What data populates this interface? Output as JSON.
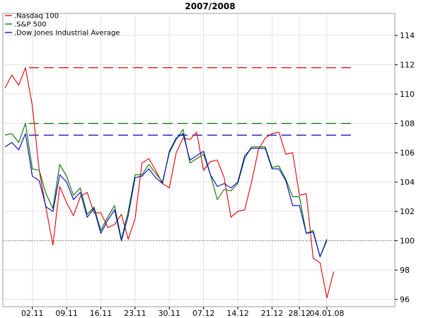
{
  "chart_data": {
    "type": "line",
    "title": "2007/2008",
    "xlabel": "",
    "ylabel": "",
    "ylim": [
      95.5,
      115.5
    ],
    "yticks": [
      96,
      98,
      100,
      102,
      104,
      106,
      108,
      110,
      112,
      114
    ],
    "x_dates": [
      "29.10",
      "30.10",
      "31.10",
      "01.11",
      "02.11",
      "05.11",
      "06.11",
      "07.11",
      "08.11",
      "09.11",
      "12.11",
      "13.11",
      "14.11",
      "15.11",
      "16.11",
      "19.11",
      "20.11",
      "21.11",
      "22.11",
      "23.11",
      "26.11",
      "27.11",
      "28.11",
      "29.11",
      "30.11",
      "03.12",
      "04.12",
      "05.12",
      "06.12",
      "07.12",
      "10.12",
      "11.12",
      "12.12",
      "13.12",
      "14.12",
      "17.12",
      "18.12",
      "19.12",
      "20.12",
      "21.12",
      "24.12",
      "26.12",
      "27.12",
      "28.12",
      "31.12",
      "02.01",
      "03.01",
      "04.01",
      "07.01",
      "08.01"
    ],
    "xtick_labels": [
      "02.11",
      "09.11",
      "16.11",
      "23.11",
      "30.11",
      "07.12",
      "14.12",
      "21.12",
      "28.12",
      "04.01.08"
    ],
    "grid": true,
    "reference_line": 100,
    "legend_position": "top-left",
    "series": [
      {
        "name": ".Nasdaq 100",
        "color": "#e00000",
        "values": [
          110.4,
          111.3,
          110.6,
          111.8,
          109.2,
          104.8,
          102.2,
          99.7,
          103.7,
          102.6,
          101.7,
          103.0,
          103.3,
          101.9,
          101.9,
          100.9,
          101.1,
          101.8,
          100.1,
          101.5,
          105.3,
          105.6,
          104.8,
          103.9,
          103.6,
          106.0,
          107.0,
          106.9,
          107.4,
          104.8,
          105.4,
          105.5,
          104.3,
          101.6,
          102.0,
          102.1,
          104.0,
          106.2,
          107.0,
          107.3,
          107.4,
          105.9,
          106.0,
          103.1,
          103.2,
          98.8,
          98.5,
          96.1,
          97.9,
          null
        ],
        "reference": 111.8
      },
      {
        "name": ".S&P 500",
        "color": "#007000",
        "values": [
          107.2,
          107.3,
          106.7,
          108.0,
          104.9,
          104.8,
          103.2,
          102.2,
          105.2,
          104.4,
          103.1,
          103.6,
          101.8,
          102.3,
          100.7,
          101.6,
          102.4,
          100.1,
          102.0,
          104.5,
          104.5,
          105.2,
          104.6,
          104.0,
          106.0,
          106.9,
          107.6,
          105.3,
          105.6,
          105.9,
          104.5,
          102.8,
          103.5,
          103.4,
          103.9,
          105.6,
          106.4,
          106.4,
          106.4,
          105.0,
          105.1,
          104.2,
          103.0,
          103.0,
          100.5,
          100.7,
          98.9,
          100.0,
          null,
          null
        ],
        "reference": 108.0
      },
      {
        "name": ".Dow Jones Industrial Average",
        "color": "#0000c0",
        "values": [
          106.4,
          106.7,
          106.2,
          107.3,
          104.4,
          104.1,
          102.3,
          102.0,
          104.5,
          104.0,
          102.8,
          103.3,
          101.6,
          102.2,
          100.5,
          101.4,
          102.1,
          100.0,
          101.7,
          104.3,
          104.4,
          104.9,
          104.3,
          103.9,
          106.1,
          107.0,
          107.3,
          105.5,
          105.8,
          106.1,
          104.5,
          103.7,
          103.9,
          103.6,
          104.0,
          105.8,
          106.3,
          106.3,
          106.3,
          104.9,
          104.9,
          104.1,
          102.4,
          102.4,
          100.5,
          100.6,
          98.9,
          100.1,
          null,
          null
        ],
        "reference": 107.2
      }
    ]
  }
}
